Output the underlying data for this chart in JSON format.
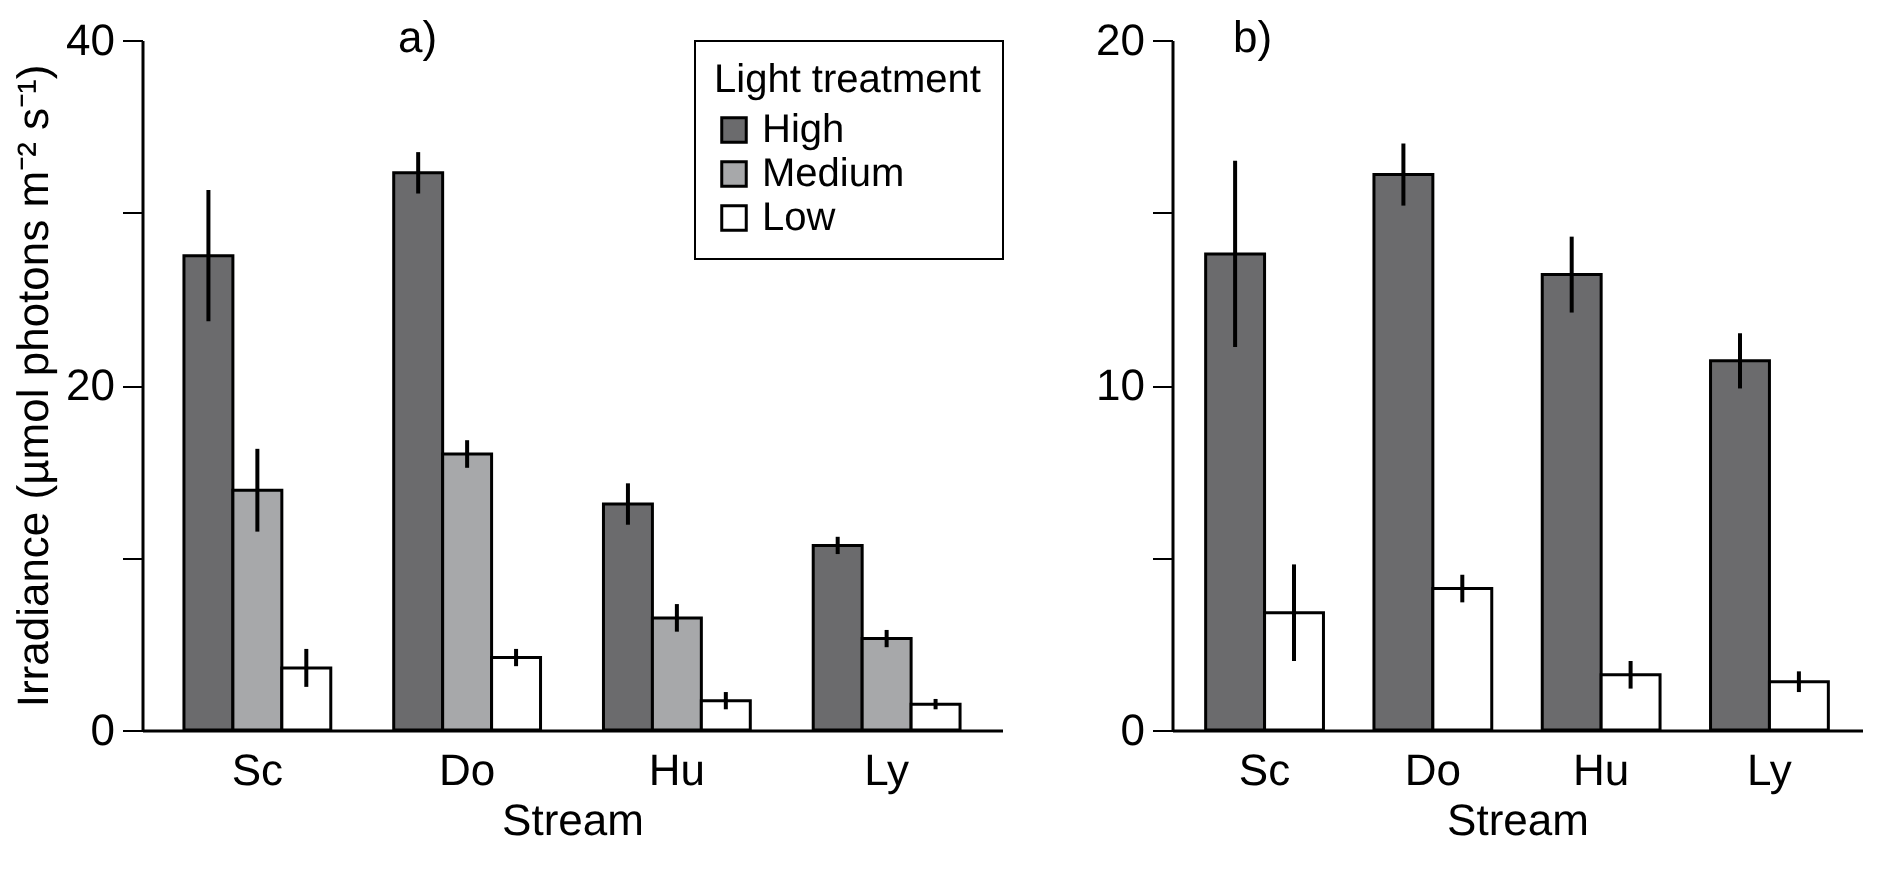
{
  "chart_data": [
    {
      "type": "bar",
      "title": "a)",
      "xlabel": "Stream",
      "ylabel": "Irradiance (µmol photons m⁻² s⁻¹)",
      "legend_title": "Light treatment",
      "legend": "top right",
      "grid": false,
      "categories": [
        "Sc",
        "Do",
        "Hu",
        "Ly"
      ],
      "ylim": [
        0,
        40
      ],
      "yticks": [
        0,
        {
          "value": 10,
          "label": null
        },
        20,
        {
          "value": 30,
          "label": null
        },
        40
      ],
      "series": [
        {
          "name": "High",
          "color": "#6b6b6d",
          "values": [
            27.5,
            32.3,
            13.1,
            10.7
          ],
          "errors": [
            3.8,
            1.2,
            1.2,
            0.5
          ]
        },
        {
          "name": "Medium",
          "color": "#a7a8aa",
          "values": [
            13.9,
            16.0,
            6.5,
            5.3
          ],
          "errors": [
            2.4,
            0.8,
            0.8,
            0.5
          ]
        },
        {
          "name": "Low",
          "color": "#ffffff",
          "values": [
            3.6,
            4.2,
            1.7,
            1.5
          ],
          "errors": [
            1.1,
            0.5,
            0.5,
            0.3
          ]
        }
      ]
    },
    {
      "type": "bar",
      "title": "b)",
      "xlabel": "Stream",
      "legend": false,
      "grid": false,
      "categories": [
        "Sc",
        "Do",
        "Hu",
        "Ly"
      ],
      "ylim": [
        0,
        20
      ],
      "yticks": [
        0,
        {
          "value": 5,
          "label": null
        },
        10,
        {
          "value": 15,
          "label": null
        },
        20
      ],
      "series": [
        {
          "color": "#6b6b6d",
          "values": [
            13.8,
            16.1,
            13.2,
            10.7
          ],
          "errors": [
            2.7,
            0.9,
            1.1,
            0.8
          ]
        },
        {
          "color": "#ffffff",
          "values": [
            3.4,
            4.1,
            1.6,
            1.4
          ],
          "errors": [
            1.4,
            0.4,
            0.4,
            0.3
          ]
        }
      ]
    }
  ]
}
